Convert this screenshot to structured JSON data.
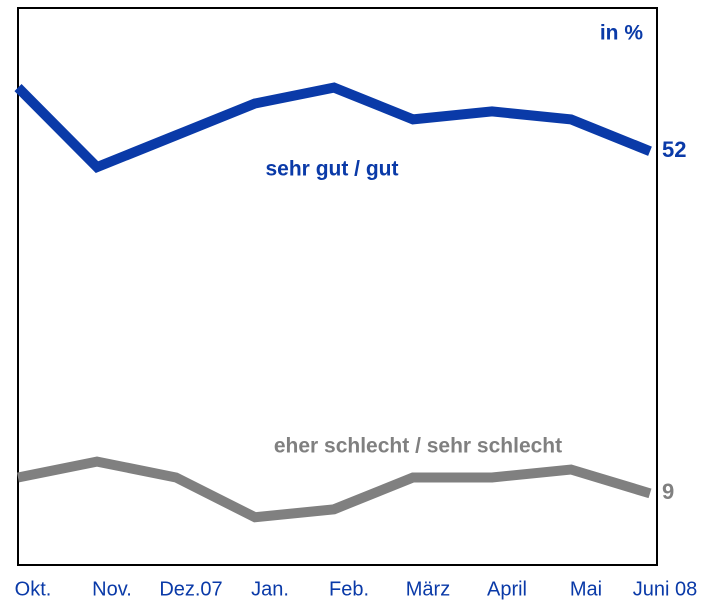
{
  "chart_data": {
    "type": "line",
    "y_label": "in %",
    "categories": [
      "Okt.",
      "Nov.",
      "Dez.07",
      "Jan.",
      "Feb.",
      "März",
      "April",
      "Mai",
      "Juni 08"
    ],
    "series": [
      {
        "name": "sehr gut / gut",
        "color": "#0a3aa8",
        "values": [
          60,
          50,
          54,
          58,
          60,
          56,
          57,
          56,
          52
        ]
      },
      {
        "name": "eher schlecht / sehr schlecht",
        "color": "#808080",
        "values": [
          11,
          13,
          11,
          6,
          7,
          11,
          11,
          12,
          9
        ]
      }
    ],
    "ylim": [
      0,
      70
    ]
  }
}
